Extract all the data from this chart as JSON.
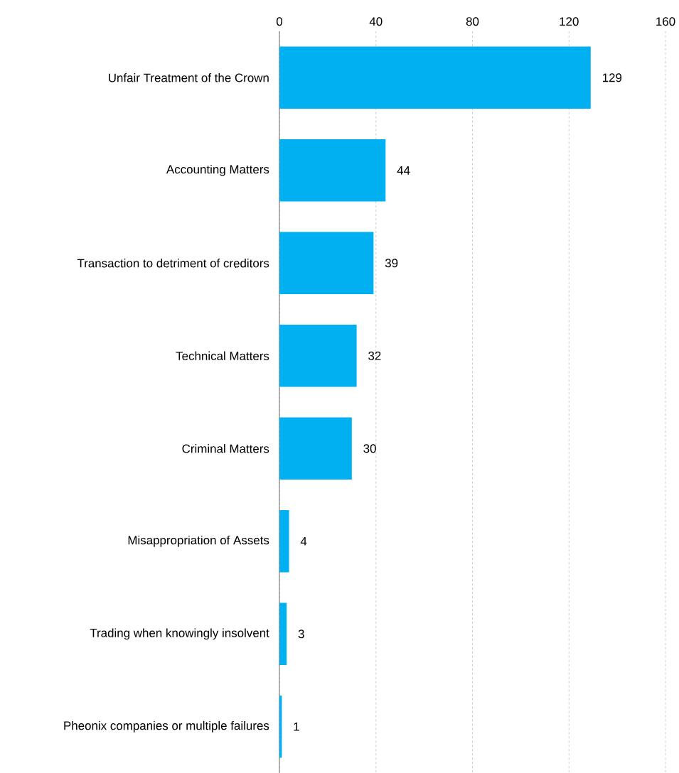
{
  "chart_data": {
    "type": "bar",
    "orientation": "horizontal",
    "categories": [
      "Unfair Treatment of the Crown",
      "Accounting Matters",
      "Transaction to detriment of creditors",
      "Technical Matters",
      "Criminal Matters",
      "Misappropriation of Assets",
      "Trading when knowingly insolvent",
      "Pheonix companies or multiple failures"
    ],
    "values": [
      129,
      44,
      39,
      32,
      30,
      4,
      3,
      1
    ],
    "color": "#00b0f0",
    "xlim": [
      0,
      160
    ],
    "xticks": [
      0,
      40,
      80,
      120,
      160
    ],
    "grid": "x",
    "line_style": "dashed",
    "data_labels": true
  }
}
